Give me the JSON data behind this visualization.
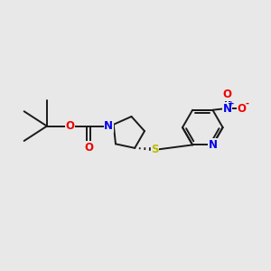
{
  "background_color": "#e8e8e8",
  "bond_color": "#1a1a1a",
  "atom_colors": {
    "N": "#0000ee",
    "O": "#ee0000",
    "S": "#bbbb00",
    "C": "#1a1a1a"
  },
  "figsize": [
    3.0,
    3.0
  ],
  "dpi": 100
}
